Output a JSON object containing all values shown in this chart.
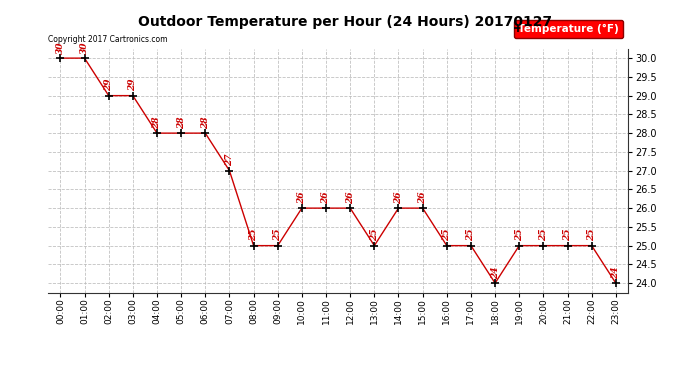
{
  "title": "Outdoor Temperature per Hour (24 Hours) 20170127",
  "hours": [
    "00:00",
    "01:00",
    "02:00",
    "03:00",
    "04:00",
    "05:00",
    "06:00",
    "07:00",
    "08:00",
    "09:00",
    "10:00",
    "11:00",
    "12:00",
    "13:00",
    "14:00",
    "15:00",
    "16:00",
    "17:00",
    "18:00",
    "19:00",
    "20:00",
    "21:00",
    "22:00",
    "23:00"
  ],
  "values": [
    30,
    30,
    29,
    29,
    28,
    28,
    28,
    27,
    25,
    25,
    26,
    26,
    26,
    25,
    26,
    26,
    25,
    25,
    24,
    25,
    25,
    25,
    25,
    24
  ],
  "line_color": "#cc0000",
  "marker_color": "#000000",
  "label_color": "#cc0000",
  "ylim_min": 23.75,
  "ylim_max": 30.25,
  "yticks": [
    24.0,
    24.5,
    25.0,
    25.5,
    26.0,
    26.5,
    27.0,
    27.5,
    28.0,
    28.5,
    29.0,
    29.5,
    30.0
  ],
  "legend_label": "Temperature (°F)",
  "copyright_text": "Copyright 2017 Cartronics.com",
  "bg_color": "#ffffff",
  "grid_color": "#bbbbbb"
}
